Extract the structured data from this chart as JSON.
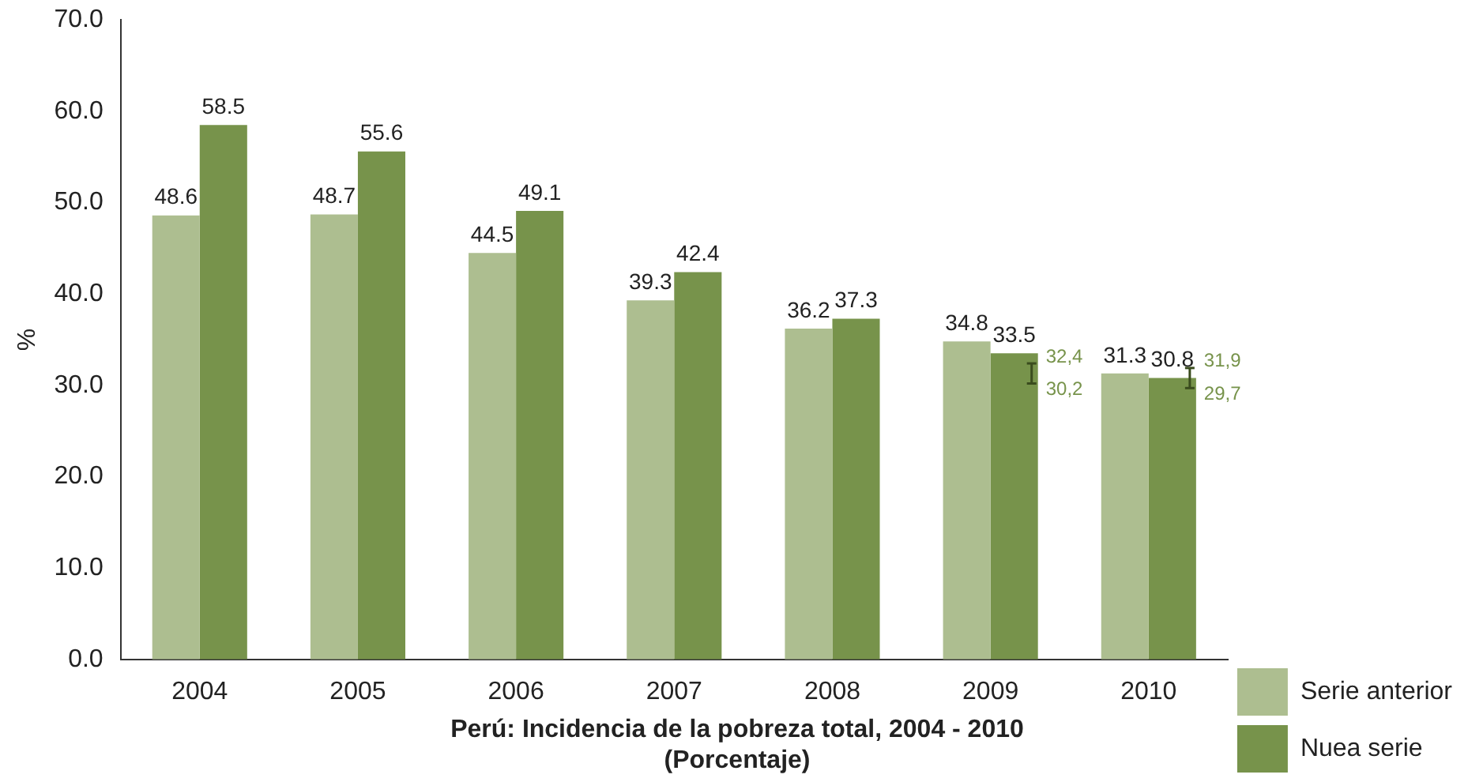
{
  "chart_data": {
    "type": "bar",
    "title": "Perú: Incidencia de la pobreza total, 2004 - 2010",
    "subtitle": "(Porcentaje)",
    "ylabel": "%",
    "categories": [
      "2004",
      "2005",
      "2006",
      "2007",
      "2008",
      "2009",
      "2010"
    ],
    "series": [
      {
        "name": "Serie anterior",
        "color": "#adbe90",
        "values": [
          48.6,
          48.7,
          44.5,
          39.3,
          36.2,
          34.8,
          31.3
        ]
      },
      {
        "name": "Nuea serie",
        "color": "#77934b",
        "values": [
          58.5,
          55.6,
          49.1,
          42.4,
          37.3,
          33.5,
          30.8
        ],
        "errors": [
          null,
          null,
          null,
          null,
          null,
          [
            30.2,
            32.4
          ],
          [
            29.7,
            31.9
          ]
        ]
      }
    ],
    "ylim": [
      0,
      70
    ],
    "yticks": [
      {
        "value": 0,
        "label": "0.0"
      },
      {
        "value": 10,
        "label": "10.0"
      },
      {
        "value": 20,
        "label": "20.0"
      },
      {
        "value": 30,
        "label": "30.0"
      },
      {
        "value": 40,
        "label": "40.0"
      },
      {
        "value": 50,
        "label": "50.0"
      },
      {
        "value": 60,
        "label": "60.0"
      },
      {
        "value": 70,
        "label": "70.0"
      }
    ],
    "annotations": [
      {
        "text": "32,4",
        "x": "2009",
        "y": 32.4
      },
      {
        "text": "30,2",
        "x": "2009",
        "y": 30.2
      },
      {
        "text": "31,9",
        "x": "2010",
        "y": 31.9
      },
      {
        "text": "29,7",
        "x": "2010",
        "y": 29.7
      }
    ],
    "data_labels": true,
    "grid": false,
    "legend": "bottom right"
  }
}
